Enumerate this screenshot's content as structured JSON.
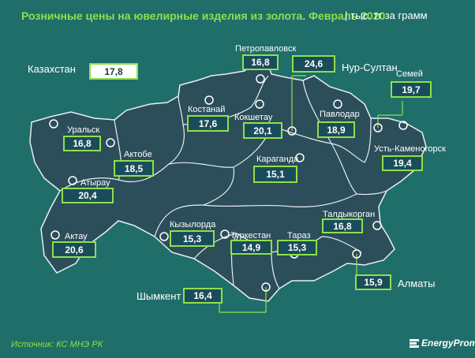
{
  "title": "Розничные цены на ювелирные изделия из золота. Февраль 2020",
  "units": "тыс. тг за грамм",
  "source": "Источник: КС МНЭ РК",
  "brand": "EnergyProm",
  "colors": {
    "background": "#1f6e6a",
    "map_fill": "#2b4e5a",
    "box_fill": "#1a4d5c",
    "box_border": "#8fe04a",
    "accent": "#8fe04a"
  },
  "chart_data": {
    "type": "table",
    "title": "Розничные цены на ювелирные изделия из золота. Февраль 2020",
    "unit": "тыс. тг за грамм",
    "country": {
      "name": "Казахстан",
      "value": "17,8"
    },
    "regions": [
      {
        "name": "Петропавловск",
        "value": "16,8"
      },
      {
        "name": "Нур-Султан",
        "value": "24,6"
      },
      {
        "name": "Семей",
        "value": "19,7"
      },
      {
        "name": "Костанай",
        "value": "17,6"
      },
      {
        "name": "Кокшетау",
        "value": "20,1"
      },
      {
        "name": "Павлодар",
        "value": "18,9"
      },
      {
        "name": "Уральск",
        "value": "16,8"
      },
      {
        "name": "Актобе",
        "value": "18,5"
      },
      {
        "name": "Усть-Каменогорск",
        "value": "19,4"
      },
      {
        "name": "Караганда",
        "value": "15,1"
      },
      {
        "name": "Атырау",
        "value": "20,4"
      },
      {
        "name": "Талдыкорган",
        "value": "16,8"
      },
      {
        "name": "Кызылорда",
        "value": "15,3"
      },
      {
        "name": "Актау",
        "value": "20,6"
      },
      {
        "name": "Туркестан",
        "value": "14,9"
      },
      {
        "name": "Тараз",
        "value": "15,3"
      },
      {
        "name": "Алматы",
        "value": "15,9"
      },
      {
        "name": "Шымкент",
        "value": "16,4"
      }
    ]
  }
}
